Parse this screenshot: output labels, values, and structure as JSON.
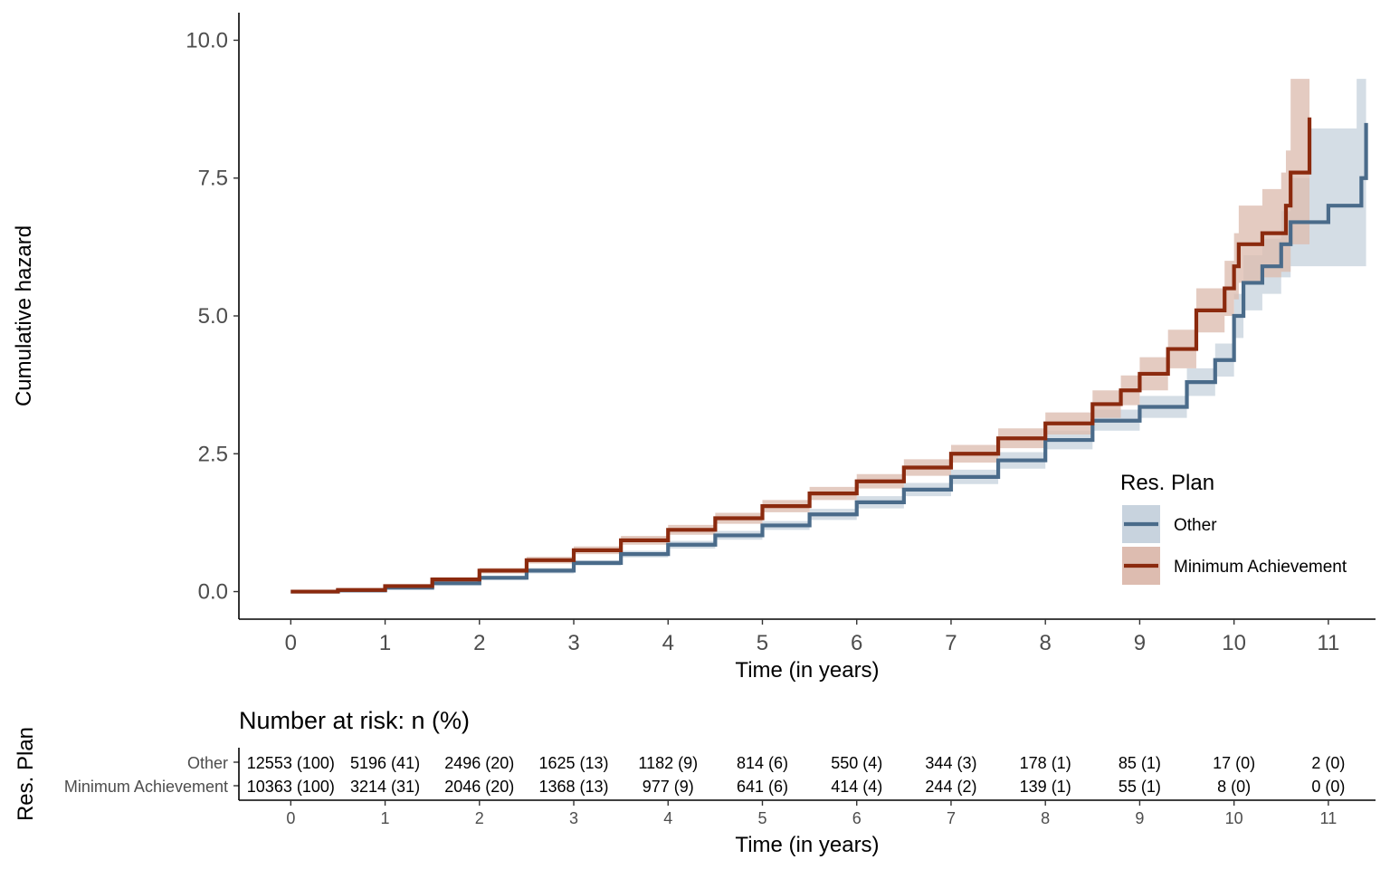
{
  "chart_data": {
    "type": "line",
    "subtype": "step-with-confidence-band",
    "title": "",
    "xlabel": "Time (in years)",
    "ylabel": "Cumulative hazard",
    "xlim": [
      -0.55,
      11.5
    ],
    "ylim": [
      -0.5,
      10.5
    ],
    "x_ticks": [
      "0",
      "1",
      "2",
      "3",
      "4",
      "5",
      "6",
      "7",
      "8",
      "9",
      "10",
      "11"
    ],
    "y_ticks": [
      "0.0",
      "2.5",
      "5.0",
      "7.5",
      "10.0"
    ],
    "grid": false,
    "legend": {
      "title": "Res. Plan",
      "placement": "bottom-right",
      "entries": [
        "Other",
        "Minimum Achievement"
      ]
    },
    "series": [
      {
        "name": "Other",
        "color": "#4a6b8a",
        "band_color": "#c8d3de",
        "points": [
          [
            0,
            0
          ],
          [
            0.5,
            0.02
          ],
          [
            1,
            0.07
          ],
          [
            1.5,
            0.15
          ],
          [
            2,
            0.25
          ],
          [
            2.5,
            0.38
          ],
          [
            3,
            0.52
          ],
          [
            3.5,
            0.68
          ],
          [
            4,
            0.85
          ],
          [
            4.5,
            1.02
          ],
          [
            5,
            1.2
          ],
          [
            5.5,
            1.4
          ],
          [
            6,
            1.62
          ],
          [
            6.5,
            1.85
          ],
          [
            7,
            2.08
          ],
          [
            7.5,
            2.38
          ],
          [
            8,
            2.75
          ],
          [
            8.5,
            3.1
          ],
          [
            9,
            3.35
          ],
          [
            9.5,
            3.8
          ],
          [
            9.8,
            4.2
          ],
          [
            10,
            5.0
          ],
          [
            10.1,
            5.6
          ],
          [
            10.3,
            5.9
          ],
          [
            10.5,
            6.3
          ],
          [
            10.6,
            6.7
          ],
          [
            10.8,
            6.7
          ],
          [
            11,
            7.0
          ],
          [
            11.3,
            7.0
          ],
          [
            11.35,
            7.5
          ],
          [
            11.4,
            8.5
          ]
        ],
        "lower": [
          [
            0,
            0
          ],
          [
            0.5,
            0.01
          ],
          [
            1,
            0.05
          ],
          [
            1.5,
            0.12
          ],
          [
            2,
            0.21
          ],
          [
            2.5,
            0.33
          ],
          [
            3,
            0.47
          ],
          [
            3.5,
            0.62
          ],
          [
            4,
            0.78
          ],
          [
            4.5,
            0.94
          ],
          [
            5,
            1.12
          ],
          [
            5.5,
            1.3
          ],
          [
            6,
            1.51
          ],
          [
            6.5,
            1.73
          ],
          [
            7,
            1.95
          ],
          [
            7.5,
            2.23
          ],
          [
            8,
            2.58
          ],
          [
            8.5,
            2.92
          ],
          [
            9,
            3.15
          ],
          [
            9.5,
            3.55
          ],
          [
            9.8,
            3.9
          ],
          [
            10,
            4.6
          ],
          [
            10.1,
            5.1
          ],
          [
            10.3,
            5.4
          ],
          [
            10.5,
            5.7
          ],
          [
            10.6,
            5.9
          ],
          [
            10.8,
            5.9
          ],
          [
            11,
            5.9
          ],
          [
            11.3,
            5.9
          ],
          [
            11.4,
            5.9
          ]
        ],
        "upper": [
          [
            0,
            0
          ],
          [
            0.5,
            0.03
          ],
          [
            1,
            0.09
          ],
          [
            1.5,
            0.18
          ],
          [
            2,
            0.29
          ],
          [
            2.5,
            0.43
          ],
          [
            3,
            0.57
          ],
          [
            3.5,
            0.74
          ],
          [
            4,
            0.92
          ],
          [
            4.5,
            1.1
          ],
          [
            5,
            1.28
          ],
          [
            5.5,
            1.5
          ],
          [
            6,
            1.73
          ],
          [
            6.5,
            1.97
          ],
          [
            7,
            2.21
          ],
          [
            7.5,
            2.53
          ],
          [
            8,
            2.92
          ],
          [
            8.5,
            3.3
          ],
          [
            9,
            3.55
          ],
          [
            9.5,
            4.05
          ],
          [
            9.8,
            4.5
          ],
          [
            10,
            5.4
          ],
          [
            10.1,
            6.1
          ],
          [
            10.3,
            6.4
          ],
          [
            10.5,
            6.9
          ],
          [
            10.6,
            7.5
          ],
          [
            10.8,
            8.4
          ],
          [
            11,
            8.4
          ],
          [
            11.3,
            9.3
          ],
          [
            11.4,
            9.3
          ]
        ]
      },
      {
        "name": "Minimum Achievement",
        "color": "#8b2a0e",
        "band_color": "#ddbcb0",
        "points": [
          [
            0,
            0
          ],
          [
            0.5,
            0.03
          ],
          [
            1,
            0.1
          ],
          [
            1.5,
            0.22
          ],
          [
            2,
            0.38
          ],
          [
            2.5,
            0.57
          ],
          [
            3,
            0.75
          ],
          [
            3.5,
            0.93
          ],
          [
            4,
            1.12
          ],
          [
            4.5,
            1.33
          ],
          [
            5,
            1.55
          ],
          [
            5.5,
            1.78
          ],
          [
            6,
            2.0
          ],
          [
            6.5,
            2.25
          ],
          [
            7,
            2.5
          ],
          [
            7.5,
            2.78
          ],
          [
            8,
            3.05
          ],
          [
            8.5,
            3.4
          ],
          [
            8.8,
            3.65
          ],
          [
            9,
            3.95
          ],
          [
            9.3,
            4.4
          ],
          [
            9.6,
            5.1
          ],
          [
            9.9,
            5.5
          ],
          [
            10,
            5.9
          ],
          [
            10.05,
            6.3
          ],
          [
            10.3,
            6.5
          ],
          [
            10.5,
            6.5
          ],
          [
            10.55,
            7.0
          ],
          [
            10.6,
            7.6
          ],
          [
            10.75,
            7.6
          ],
          [
            10.8,
            8.6
          ]
        ],
        "lower": [
          [
            0,
            0
          ],
          [
            0.5,
            0.02
          ],
          [
            1,
            0.08
          ],
          [
            1.5,
            0.18
          ],
          [
            2,
            0.33
          ],
          [
            2.5,
            0.51
          ],
          [
            3,
            0.68
          ],
          [
            3.5,
            0.85
          ],
          [
            4,
            1.03
          ],
          [
            4.5,
            1.23
          ],
          [
            5,
            1.44
          ],
          [
            5.5,
            1.66
          ],
          [
            6,
            1.87
          ],
          [
            6.5,
            2.1
          ],
          [
            7,
            2.34
          ],
          [
            7.5,
            2.6
          ],
          [
            8,
            2.85
          ],
          [
            8.5,
            3.15
          ],
          [
            8.8,
            3.38
          ],
          [
            9,
            3.65
          ],
          [
            9.3,
            4.05
          ],
          [
            9.6,
            4.7
          ],
          [
            9.9,
            5.0
          ],
          [
            10,
            5.3
          ],
          [
            10.05,
            5.6
          ],
          [
            10.3,
            5.7
          ],
          [
            10.5,
            5.8
          ],
          [
            10.6,
            6.3
          ],
          [
            10.8,
            6.3
          ]
        ],
        "upper": [
          [
            0,
            0
          ],
          [
            0.5,
            0.04
          ],
          [
            1,
            0.12
          ],
          [
            1.5,
            0.26
          ],
          [
            2,
            0.43
          ],
          [
            2.5,
            0.63
          ],
          [
            3,
            0.82
          ],
          [
            3.5,
            1.01
          ],
          [
            4,
            1.21
          ],
          [
            4.5,
            1.43
          ],
          [
            5,
            1.66
          ],
          [
            5.5,
            1.9
          ],
          [
            6,
            2.13
          ],
          [
            6.5,
            2.4
          ],
          [
            7,
            2.66
          ],
          [
            7.5,
            2.96
          ],
          [
            8,
            3.25
          ],
          [
            8.5,
            3.65
          ],
          [
            8.8,
            3.92
          ],
          [
            9,
            4.25
          ],
          [
            9.3,
            4.75
          ],
          [
            9.6,
            5.5
          ],
          [
            9.9,
            6.0
          ],
          [
            10,
            6.5
          ],
          [
            10.05,
            7.0
          ],
          [
            10.3,
            7.3
          ],
          [
            10.5,
            7.6
          ],
          [
            10.55,
            8.0
          ],
          [
            10.6,
            9.3
          ],
          [
            10.8,
            9.3
          ]
        ]
      }
    ],
    "risk_table": {
      "title": "Number at risk: n (%)",
      "ylabel": "Res. Plan",
      "xlabel": "Time (in years)",
      "rows": [
        {
          "label": "Other",
          "values": [
            "12553 (100)",
            "5196 (41)",
            "2496 (20)",
            "1625 (13)",
            "1182 (9)",
            "814 (6)",
            "550 (4)",
            "344 (3)",
            "178 (1)",
            "85 (1)",
            "17 (0)",
            "2 (0)"
          ]
        },
        {
          "label": "Minimum Achievement",
          "values": [
            "10363 (100)",
            "3214 (31)",
            "2046 (20)",
            "1368 (13)",
            "977 (9)",
            "641 (6)",
            "414 (4)",
            "244 (2)",
            "139 (1)",
            "55 (1)",
            "8 (0)",
            "0 (0)"
          ]
        }
      ]
    }
  }
}
